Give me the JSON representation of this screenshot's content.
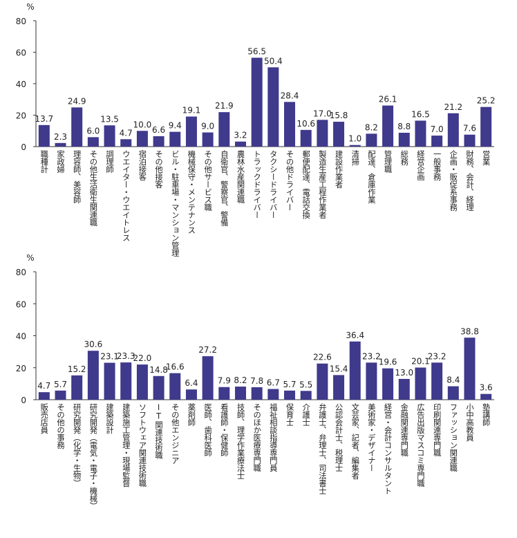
{
  "chart_data": [
    {
      "type": "bar",
      "y_label": "%",
      "ylim": [
        0,
        80
      ],
      "yticks": [
        0,
        20,
        40,
        60,
        80
      ],
      "color": "#3f3a8c",
      "categories": [
        "職種計",
        "家政婦",
        "理容師、美容師",
        "その他生活衛生関連職",
        "調理師",
        "ウエイター・ウエイトレス",
        "宿泊接客",
        "その他接客",
        "ビル・駐車場・マンション管理",
        "機械保守・メンテナンス",
        "その他サービス職",
        "自衛官、警察官、警備",
        "農林水産関連職",
        "トラックドライバー",
        "タクシードライバー",
        "その他ドライバー",
        "郵便配達、電話交換",
        "製造生産工程作業者",
        "建設作業者",
        "清掃",
        "配達、倉庫作業",
        "管理職",
        "総務",
        "経営企画",
        "一般事務",
        "企画・販促系事務",
        "財務、会計、経理",
        "営業"
      ],
      "values": [
        13.7,
        2.3,
        24.9,
        6.0,
        13.5,
        4.7,
        10.0,
        6.6,
        9.4,
        19.1,
        9.0,
        21.9,
        3.2,
        56.5,
        50.4,
        28.4,
        10.6,
        17.0,
        15.8,
        1.0,
        8.2,
        26.1,
        8.8,
        16.5,
        7.0,
        21.2,
        7.6,
        25.2
      ],
      "value_labels": [
        "13.7",
        "2.3",
        "24.9",
        "6.0",
        "13.5",
        "4.7",
        "10.0",
        "6.6",
        "9.4",
        "19.1",
        "9.0",
        "21.9",
        "3.2",
        "56.5",
        "50.4",
        "28.4",
        "10.6",
        "17.0",
        "15.8",
        "1.0",
        "8.2",
        "26.1",
        "8.8",
        "16.5",
        "7.0",
        "21.2",
        "7.6",
        "25.2"
      ]
    },
    {
      "type": "bar",
      "y_label": "%",
      "ylim": [
        0,
        80
      ],
      "yticks": [
        0,
        20,
        40,
        60,
        80
      ],
      "color": "#3f3a8c",
      "categories": [
        "販売店員",
        "その他の事務",
        "研究開発（化学・生物）",
        "研究開発（電気・電子・機械）",
        "建築設計",
        "建築施工管理・現場監督",
        "ソフトウェア関連技術職",
        "IT関連技術職",
        "その他エンジニア",
        "薬剤師",
        "医師、歯科医師",
        "看護師・保健師",
        "技師、理学作業療法士",
        "そのほか医療専門職",
        "福祉相談指導専門員",
        "保育士",
        "介護士",
        "弁護士、弁理士、司法書士",
        "公認会計士、税理士",
        "文芸家、記者、編集者",
        "美術家・デザイナー",
        "経営・会計コンサルタント",
        "金融関連専門職",
        "広告出版マスコミ専門職",
        "印刷関連専門職",
        "ファッション関連職",
        "小中高教員",
        "塾講師"
      ],
      "values": [
        4.7,
        5.7,
        15.2,
        30.6,
        23.1,
        23.3,
        22.0,
        14.8,
        16.6,
        6.4,
        27.2,
        7.9,
        8.2,
        7.8,
        6.7,
        5.7,
        5.5,
        22.6,
        15.4,
        36.4,
        23.2,
        19.6,
        13.0,
        20.1,
        23.2,
        8.4,
        38.8,
        3.6
      ],
      "value_labels": [
        "4.7",
        "5.7",
        "15.2",
        "30.6",
        "23.1",
        "23.3",
        "22.0",
        "14.8",
        "16.6",
        "6.4",
        "27.2",
        "7.9",
        "8.2",
        "7.8",
        "6.7",
        "5.7",
        "5.5",
        "22.6",
        "15.4",
        "36.4",
        "23.2",
        "19.6",
        "13.0",
        "20.1",
        "23.2",
        "8.4",
        "38.8",
        "3.6"
      ]
    }
  ]
}
